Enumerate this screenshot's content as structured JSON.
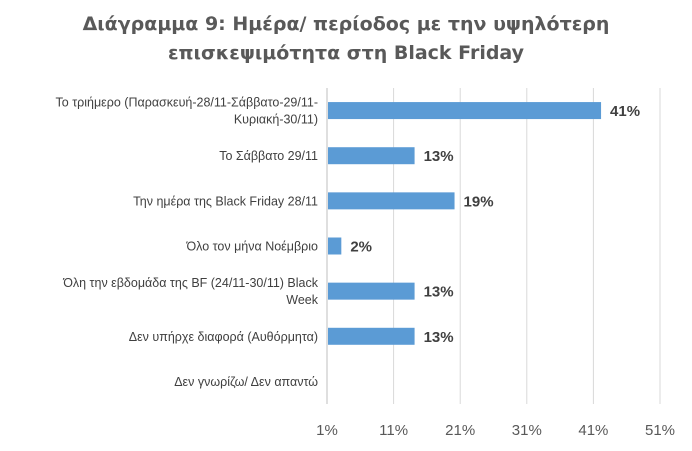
{
  "chart_data": {
    "type": "bar",
    "orientation": "horizontal",
    "title_lines": [
      "Διάγραμμα 9: Ημέρα/ περίοδος με την υψηλότερη",
      "επισκεψιμότητα στη  Black Friday"
    ],
    "categories": [
      [
        "Το τριήμερο  (Παρασκευή-28/11-Σάββατο-29/11-",
        "Κυριακή-30/11)"
      ],
      [
        "Το Σάββατο 29/11"
      ],
      [
        "Την ημέρα της Black Friday 28/11"
      ],
      [
        "Όλο τον μήνα Νοέμβριο"
      ],
      [
        "Όλη την εβδομάδα  της BF (24/11-30/11) Black",
        "Week"
      ],
      [
        "Δεν υπήρχε διαφορά  (Αυθόρμητα)"
      ],
      [
        "Δεν γνωρίζω/ Δεν απαντώ"
      ]
    ],
    "values": [
      41,
      13,
      19,
      2,
      13,
      13,
      null
    ],
    "data_labels": [
      "41%",
      "13%",
      "19%",
      "2%",
      "13%",
      "13%",
      ""
    ],
    "x_ticks": [
      "1%",
      "11%",
      "21%",
      "31%",
      "41%",
      "51%"
    ],
    "x_tick_values": [
      1,
      11,
      21,
      31,
      41,
      51
    ],
    "xlim": [
      1,
      51
    ],
    "xlabel": "",
    "ylabel": "",
    "grid": "vertical",
    "legend": "none",
    "bar_color": "#5B9BD5",
    "grid_color": "#D9D9D9",
    "axis_color": "#BFBFBF",
    "label_color": "#404040",
    "tick_color": "#595959",
    "data_label_color": "#404040"
  }
}
